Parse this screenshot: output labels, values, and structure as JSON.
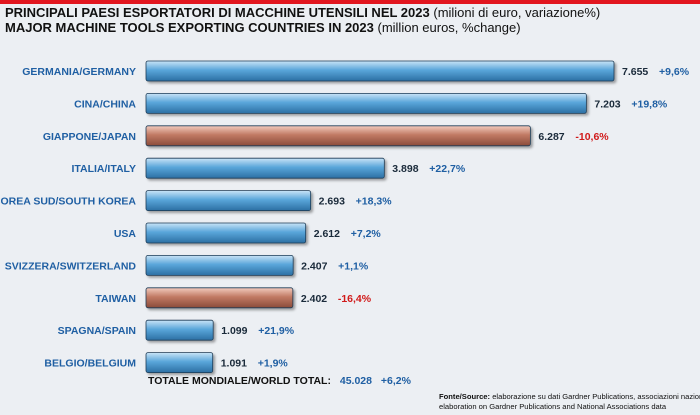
{
  "title_it": "PRINCIPALI PAESI ESPORTATORI DI MACCHINE UTENSILI NEL 2023",
  "title_it_note": "(milioni di euro, variazione%)",
  "title_en": "MAJOR MACHINE TOOLS EXPORTING COUNTRIES IN 2023",
  "title_en_note": "(million euros, %change)",
  "total": {
    "label": "TOTALE MONDIALE/WORLD TOTAL:",
    "value": "45.028",
    "change": "+6,2%"
  },
  "footer": {
    "source_label": "Fonte/Source:",
    "line1": "elaborazione su dati Gardner Publications, associazioni nazionali/",
    "line2": "elaboration on Gardner Publications and National Associations data"
  },
  "colors": {
    "bar_positive": "#4e9bd1",
    "bar_negative": "#b3705f",
    "label_blue": "#1f5fa3",
    "change_negative": "#d11a1a"
  },
  "chart_data": {
    "type": "bar",
    "orientation": "horizontal",
    "categories": [
      "GERMANIA/GERMANY",
      "CINA/CHINA",
      "GIAPPONE/JAPAN",
      "ITALIA/ITALY",
      "COREA SUD/SOUTH KOREA",
      "USA",
      "SVIZZERA/SWITZERLAND",
      "TAIWAN",
      "SPAGNA/SPAIN",
      "BELGIO/BELGIUM"
    ],
    "values": [
      7655,
      7203,
      6287,
      3898,
      2693,
      2612,
      2407,
      2402,
      1099,
      1091
    ],
    "value_labels": [
      "7.655",
      "7.203",
      "6.287",
      "3.898",
      "2.693",
      "2.612",
      "2.407",
      "2.402",
      "1.099",
      "1.091"
    ],
    "changes": [
      "+9,6%",
      "+19,8%",
      "-10,6%",
      "+22,7%",
      "+18,3%",
      "+7,2%",
      "+1,1%",
      "-16,4%",
      "+21,9%",
      "+1,9%"
    ],
    "negative_change": [
      false,
      false,
      true,
      false,
      false,
      false,
      false,
      true,
      false,
      false
    ],
    "grid": false
  }
}
